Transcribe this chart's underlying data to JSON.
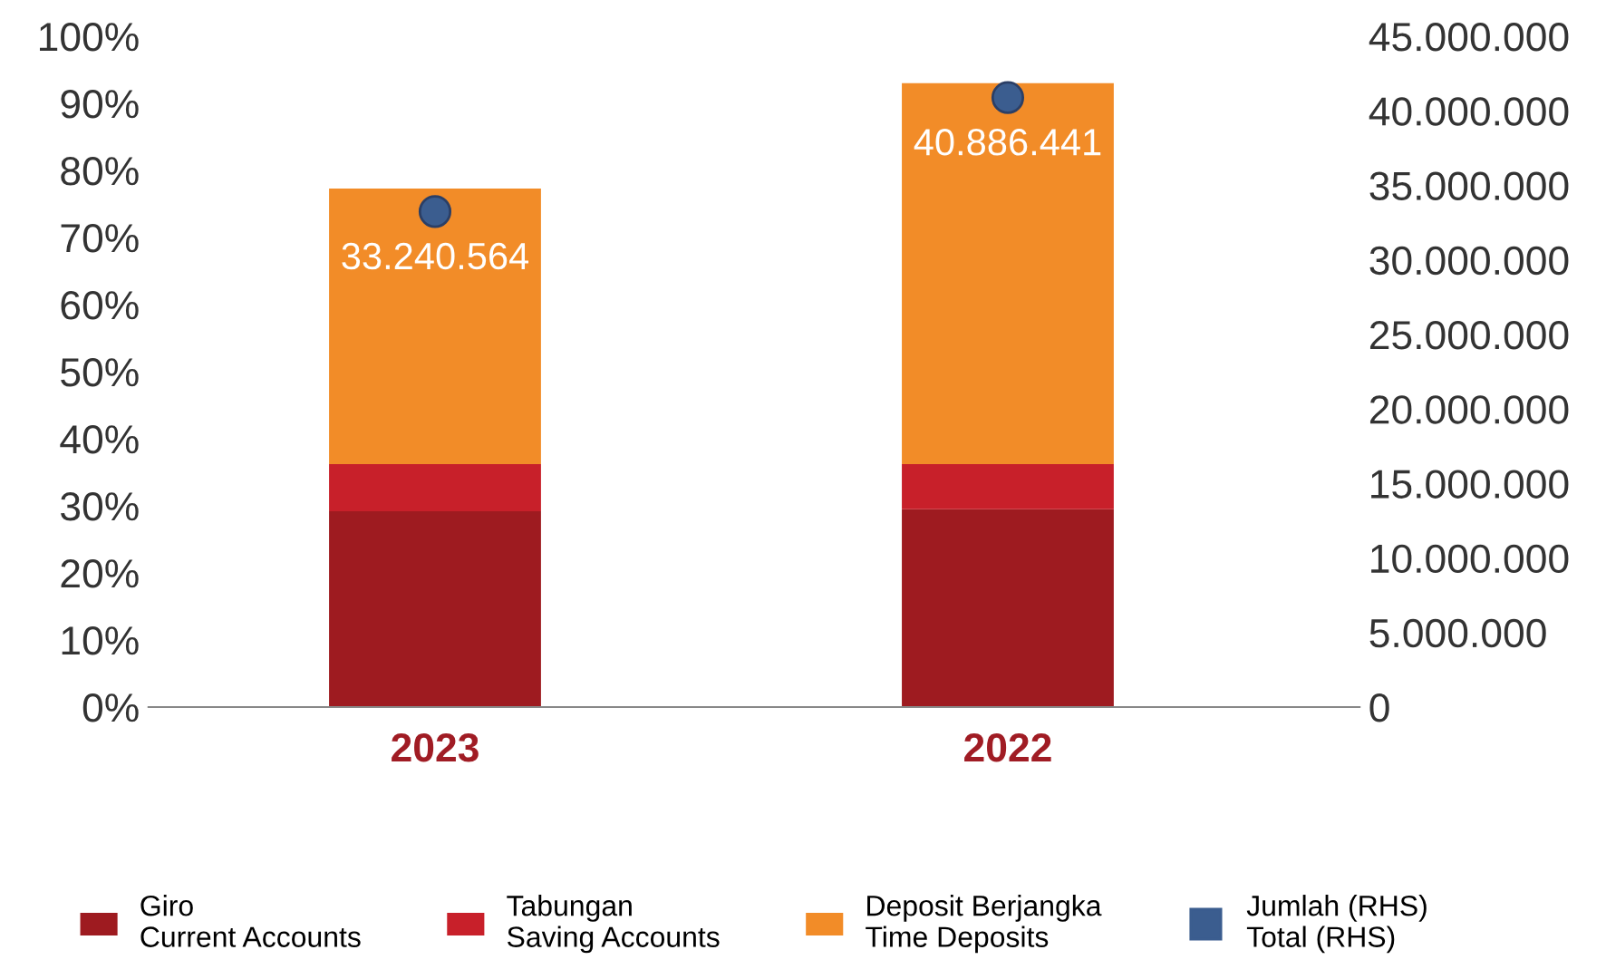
{
  "chart_data": {
    "type": "bar",
    "stacked": true,
    "categories": [
      "2023",
      "2022"
    ],
    "series": [
      {
        "name": "Giro\nCurrent Accounts",
        "color": "#9e1b20",
        "values": [
          29.2,
          29.5
        ]
      },
      {
        "name": "Tabungan\nSaving Accounts",
        "color": "#c8202a",
        "values": [
          7.0,
          6.7
        ]
      },
      {
        "name": "Deposit Berjangka\nTime Deposits",
        "color": "#f28c28",
        "values": [
          41.1,
          56.8
        ]
      },
      {
        "name": "Jumlah (RHS)\nTotal (RHS)",
        "color": "#3b5d8f",
        "type": "scatter",
        "axis": "y2",
        "values": [
          33240564,
          40886441
        ],
        "value_labels": [
          "33.240.564",
          "40.886.441"
        ]
      }
    ],
    "ylim": [
      0,
      100
    ],
    "yticks": [
      {
        "value": 0,
        "label": "0%"
      },
      {
        "value": 10,
        "label": "10%"
      },
      {
        "value": 20,
        "label": "20%"
      },
      {
        "value": 30,
        "label": "30%"
      },
      {
        "value": 40,
        "label": "40%"
      },
      {
        "value": 50,
        "label": "50%"
      },
      {
        "value": 60,
        "label": "60%"
      },
      {
        "value": 70,
        "label": "70%"
      },
      {
        "value": 80,
        "label": "80%"
      },
      {
        "value": 90,
        "label": "90%"
      },
      {
        "value": 100,
        "label": "100%"
      }
    ],
    "y2lim": [
      0,
      45000000
    ],
    "y2ticks": [
      0,
      {
        "value": 5000000,
        "label": "5.000.000"
      },
      {
        "value": 10000000,
        "label": "10.000.000"
      },
      {
        "value": 15000000,
        "label": "15.000.000"
      },
      {
        "value": 20000000,
        "label": "20.000.000"
      },
      {
        "value": 25000000,
        "label": "25.000.000"
      },
      {
        "value": 30000000,
        "label": "30.000.000"
      },
      {
        "value": 35000000,
        "label": "35.000.000"
      },
      {
        "value": 40000000,
        "label": "40.000.000"
      },
      {
        "value": 45000000,
        "label": "45.000.000"
      }
    ],
    "grid": false,
    "legend": "bottom",
    "marker": "circle"
  }
}
